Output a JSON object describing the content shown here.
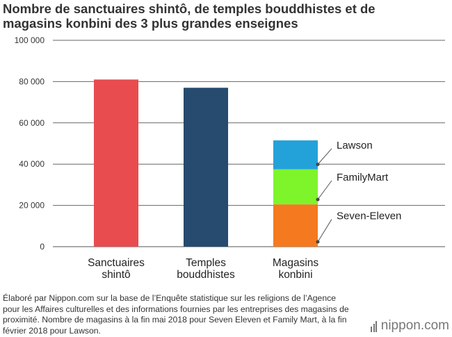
{
  "chart_data": {
    "type": "bar",
    "title": "Nombre de sanctuaires shintô, de temples bouddhistes et de magasins konbini des 3 plus grandes enseignes",
    "categories": [
      "Sanctuaires shintô",
      "Temples bouddhistes",
      "Magasins konbini"
    ],
    "category_lines": [
      [
        "Sanctuaires",
        "shintô"
      ],
      [
        "Temples",
        "bouddhistes"
      ],
      [
        "Magasins",
        "konbini"
      ]
    ],
    "bars": [
      {
        "category": "Sanctuaires shintô",
        "value": 81000,
        "color": "#e84c4f"
      },
      {
        "category": "Temples bouddhistes",
        "value": 77000,
        "color": "#264b6e"
      },
      {
        "category": "Magasins konbini",
        "stacked": true,
        "segments": [
          {
            "name": "Seven-Eleven",
            "value": 20500,
            "color": "#f5791f"
          },
          {
            "name": "FamilyMart",
            "value": 17000,
            "color": "#7ef42a"
          },
          {
            "name": "Lawson",
            "value": 14000,
            "color": "#23a2d9"
          }
        ]
      }
    ],
    "ylim": [
      0,
      100000
    ],
    "yticks": [
      0,
      20000,
      40000,
      60000,
      80000,
      100000
    ],
    "ytick_labels": [
      "0",
      "20 000",
      "40 000",
      "60 000",
      "80 000",
      "100 000"
    ],
    "grid": true,
    "xlabel": "",
    "ylabel": ""
  },
  "footnote": "Élaboré par Nippon.com sur la base de l’Enquête statistique sur les religions de l’Agence pour les Affaires culturelles et des informations fournies par les entreprises des magasins de proximité. Nombre de magasins à la fin mai 2018 pour Seven Eleven et Family Mart, à la fin février 2018 pour Lawson.",
  "logo_text": "nippon.com"
}
